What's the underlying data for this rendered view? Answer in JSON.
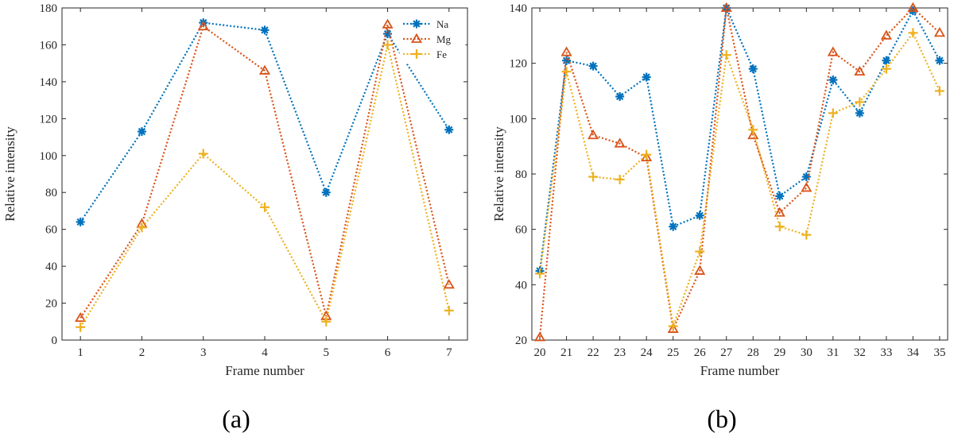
{
  "colors": {
    "Na": "#0072BD",
    "Mg": "#D95319",
    "Fe": "#EDB120",
    "axis": "#262626"
  },
  "chart_data": [
    {
      "type": "line",
      "caption": "(a)",
      "xlabel": "Frame number",
      "ylabel": "Relative intensity",
      "x": [
        1,
        2,
        3,
        4,
        5,
        6,
        7
      ],
      "xlim": [
        0.7,
        7.3
      ],
      "ylim": [
        0,
        180
      ],
      "xticks": [
        1,
        2,
        3,
        4,
        5,
        6,
        7
      ],
      "yticks": [
        0,
        20,
        40,
        60,
        80,
        100,
        120,
        140,
        160,
        180
      ],
      "legend": "top-right",
      "series": [
        {
          "name": "Na",
          "marker": "asterisk",
          "values": [
            64,
            113,
            172,
            168,
            80,
            166,
            114
          ]
        },
        {
          "name": "Mg",
          "marker": "triangle",
          "values": [
            12,
            63,
            170,
            146,
            13,
            171,
            30
          ]
        },
        {
          "name": "Fe",
          "marker": "plus",
          "values": [
            7,
            61,
            101,
            72,
            10,
            160,
            16
          ]
        }
      ]
    },
    {
      "type": "line",
      "caption": "(b)",
      "xlabel": "Frame number",
      "ylabel": "Relative intensity",
      "x": [
        20,
        21,
        22,
        23,
        24,
        25,
        26,
        27,
        28,
        29,
        30,
        31,
        32,
        33,
        34,
        35
      ],
      "xlim": [
        19.7,
        35.3
      ],
      "ylim": [
        20,
        140
      ],
      "xticks": [
        20,
        21,
        22,
        23,
        24,
        25,
        26,
        27,
        28,
        29,
        30,
        31,
        32,
        33,
        34,
        35
      ],
      "yticks": [
        20,
        40,
        60,
        80,
        100,
        120,
        140
      ],
      "legend": "none",
      "series": [
        {
          "name": "Na",
          "marker": "asterisk",
          "values": [
            45,
            121,
            119,
            108,
            115,
            61,
            65,
            140,
            118,
            72,
            79,
            114,
            102,
            121,
            139,
            121
          ]
        },
        {
          "name": "Mg",
          "marker": "triangle",
          "values": [
            21,
            124,
            94,
            91,
            86,
            24,
            45,
            140,
            94,
            66,
            75,
            124,
            117,
            130,
            140,
            131
          ]
        },
        {
          "name": "Fe",
          "marker": "plus",
          "values": [
            44,
            117,
            79,
            78,
            87,
            25,
            52,
            123,
            96,
            61,
            58,
            102,
            106,
            118,
            131,
            110
          ]
        }
      ]
    }
  ]
}
